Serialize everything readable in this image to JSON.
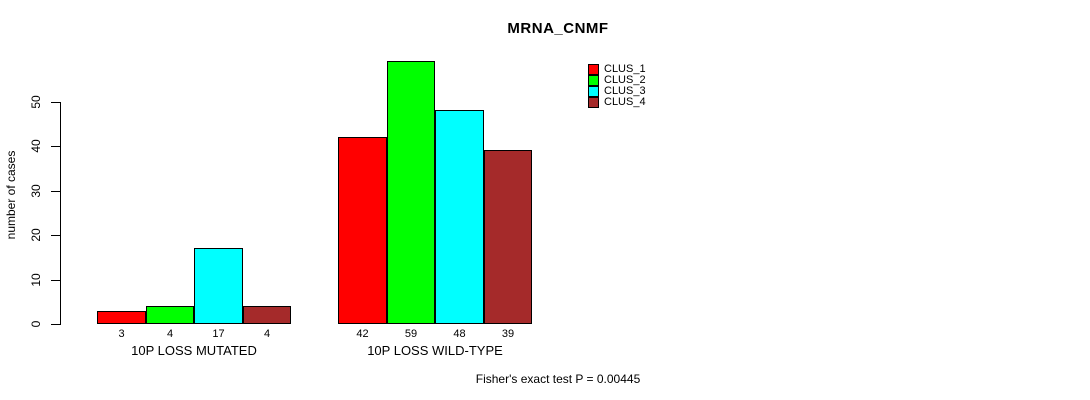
{
  "chart_data": {
    "type": "bar",
    "title": "MRNA_CNMF",
    "ylabel": "number of cases",
    "xlabel": "",
    "categories": [
      "10P LOSS MUTATED",
      "10P LOSS WILD-TYPE"
    ],
    "series": [
      {
        "name": "CLUS_1",
        "color": "#ff0000",
        "values": [
          3,
          42
        ]
      },
      {
        "name": "CLUS_2",
        "color": "#00ff00",
        "values": [
          4,
          59
        ]
      },
      {
        "name": "CLUS_3",
        "color": "#00ffff",
        "values": [
          17,
          48
        ]
      },
      {
        "name": "CLUS_4",
        "color": "#a52a2a",
        "values": [
          4,
          39
        ]
      }
    ],
    "yticks": [
      0,
      10,
      20,
      30,
      40,
      50
    ],
    "ylim": [
      0,
      59
    ],
    "bar_value_labels": [
      [
        "3",
        "4",
        "17",
        "4"
      ],
      [
        "42",
        "59",
        "48",
        "39"
      ]
    ],
    "grid": false,
    "legend_position": "top-right",
    "annotation": "Fisher's exact test P = 0.00445"
  }
}
